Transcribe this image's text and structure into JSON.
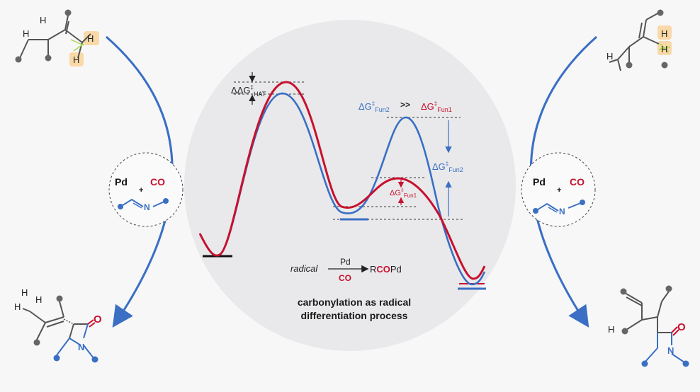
{
  "colors": {
    "red": "#c8102e",
    "blue": "#3a6fc4",
    "dark": "#222222",
    "gray": "#777777",
    "halo": "#e8e8ea",
    "highlight": "#f9d9a8",
    "hairs": "#a8d84a"
  },
  "labels": {
    "ddg_hat_prefix": "ΔΔG",
    "ddg_hat_sub": "HAT",
    "dg_fun2_prefix": "ΔG",
    "dg_fun2_sub": "Fun2",
    "much_greater": ">>",
    "dg_fun1_prefix": "ΔG",
    "dg_fun1_sub": "Fun1",
    "dg_fun2_arrow_prefix": "ΔG",
    "dg_fun2_arrow_sub": "Fun2",
    "dg_fun1_small_prefix": "ΔG",
    "dg_fun1_small_sub": "Fun1",
    "dagger": "‡",
    "reagent_pd": "Pd",
    "reagent_plus": "+",
    "reagent_co": "CO",
    "imine_n": "N",
    "scheme_radical": "radical",
    "scheme_pd": "Pd",
    "scheme_co": "CO",
    "scheme_product_r": "R",
    "scheme_product_co": "CO",
    "scheme_product_pd": "Pd",
    "carbonyl_o": "O",
    "lactam_n": "N",
    "hydrogen": "H"
  },
  "caption": {
    "line1": "carbonylation as radical",
    "line2": "differentiation process"
  }
}
